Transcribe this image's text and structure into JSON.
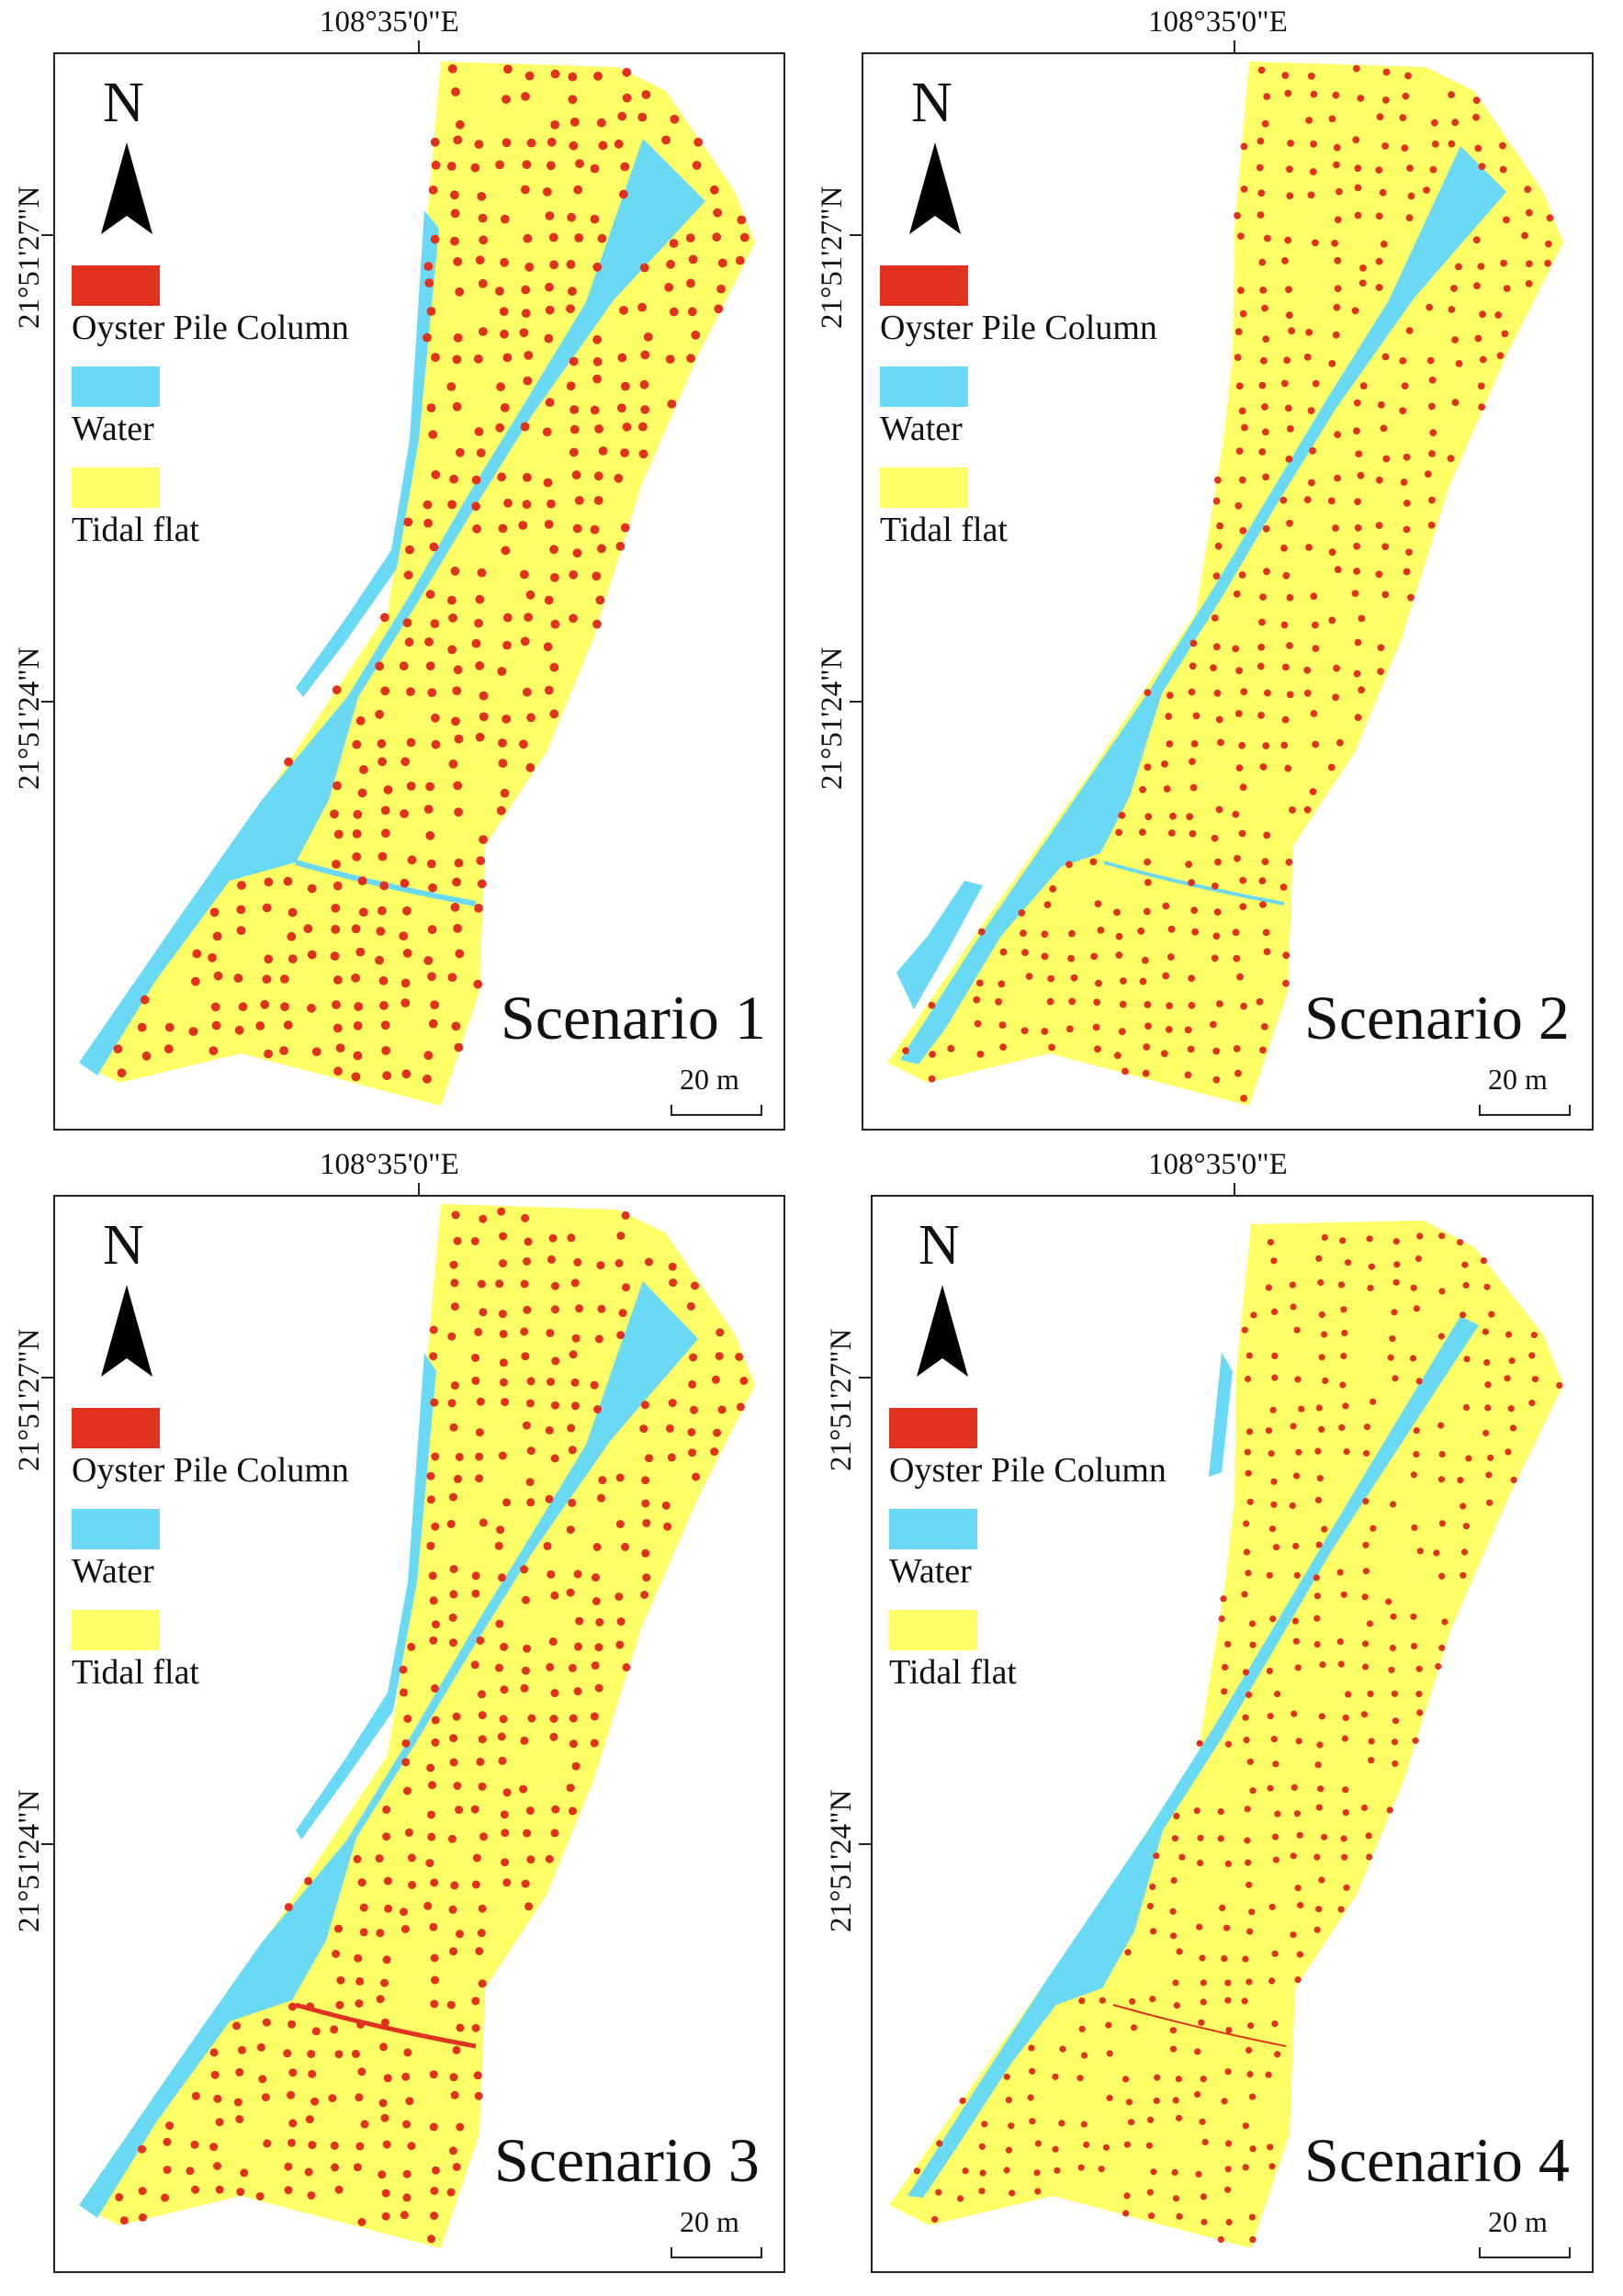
{
  "colors": {
    "oyster": "#e0321e",
    "water": "#6ad9f6",
    "tidal": "#ffff66",
    "frame": "#222222"
  },
  "legend": {
    "items": [
      {
        "label": "Oyster Pile Column",
        "color": "#e0321e"
      },
      {
        "label": "Water",
        "color": "#6ad9f6"
      },
      {
        "label": "Tidal flat",
        "color": "#ffff66"
      }
    ]
  },
  "north_label": "N",
  "scale_label": "20 m",
  "panels": [
    {
      "title": "Scenario 1",
      "lon_label": "108°35'0\"E",
      "lat_top": "21°51'27\"N",
      "lat_bottom": "21°51'24\"N",
      "oyster_density": 0.75
    },
    {
      "title": "Scenario 2",
      "lon_label": "108°35'0\"E",
      "lat_top": "21°51'27\"N",
      "lat_bottom": "21°51'24\"N",
      "oyster_density": 0.35
    },
    {
      "title": "Scenario 3",
      "lon_label": "108°35'0\"E",
      "lat_top": "21°51'27\"N",
      "lat_bottom": "21°51'24\"N",
      "oyster_density": 0.6
    },
    {
      "title": "Scenario 4",
      "lon_label": "108°35'0\"E",
      "lat_top": "21°51'27\"N",
      "lat_bottom": "21°51'24\"N",
      "oyster_density": 0.25
    }
  ]
}
